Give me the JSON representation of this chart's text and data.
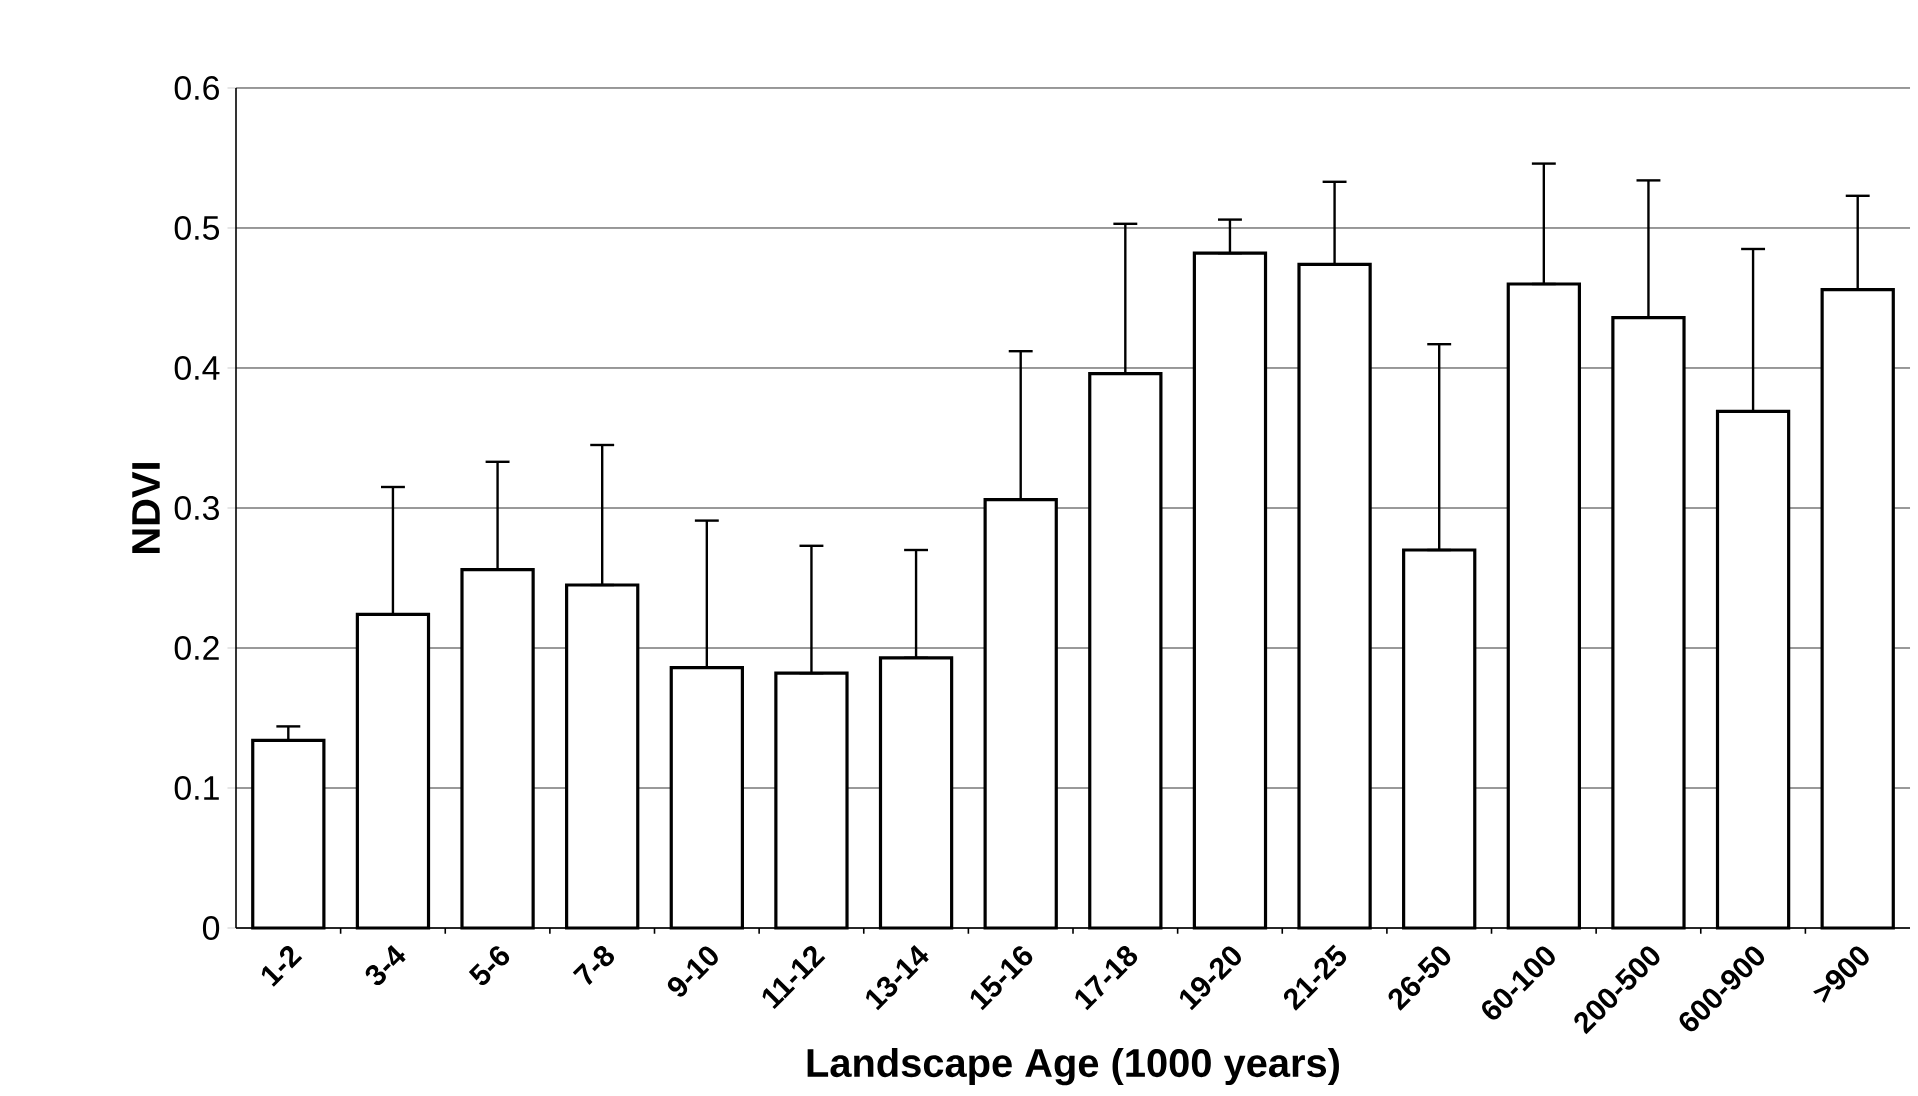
{
  "chart_data": {
    "type": "bar",
    "xlabel": "Landscape Age (1000 years)",
    "ylabel": "NDVI",
    "categories": [
      "1-2",
      "3-4",
      "5-6",
      "7-8",
      "9-10",
      "11-12",
      "13-14",
      "15-16",
      "17-18",
      "19-20",
      "21-25",
      "26-50",
      "60-100",
      "200-500",
      "600-900",
      ">900"
    ],
    "values": [
      0.134,
      0.224,
      0.256,
      0.245,
      0.186,
      0.182,
      0.193,
      0.306,
      0.396,
      0.482,
      0.474,
      0.27,
      0.46,
      0.436,
      0.369,
      0.456
    ],
    "errors": [
      [
        0.134,
        0.144
      ],
      [
        0.224,
        0.315
      ],
      [
        0.256,
        0.333
      ],
      [
        0.245,
        0.345
      ],
      [
        0.186,
        0.291
      ],
      [
        0.182,
        0.273
      ],
      [
        0.193,
        0.27
      ],
      [
        0.306,
        0.412
      ],
      [
        0.396,
        0.503
      ],
      [
        0.482,
        0.506
      ],
      [
        0.474,
        0.533
      ],
      [
        0.27,
        0.417
      ],
      [
        0.46,
        0.546
      ],
      [
        0.436,
        0.534
      ],
      [
        0.369,
        0.485
      ],
      [
        0.456,
        0.523
      ]
    ],
    "color": "#ffffff",
    "ylim": [
      0,
      0.6
    ],
    "yticks": [
      0,
      0.1,
      0.2,
      0.3,
      0.4,
      0.5,
      0.6
    ],
    "grid": "y"
  }
}
